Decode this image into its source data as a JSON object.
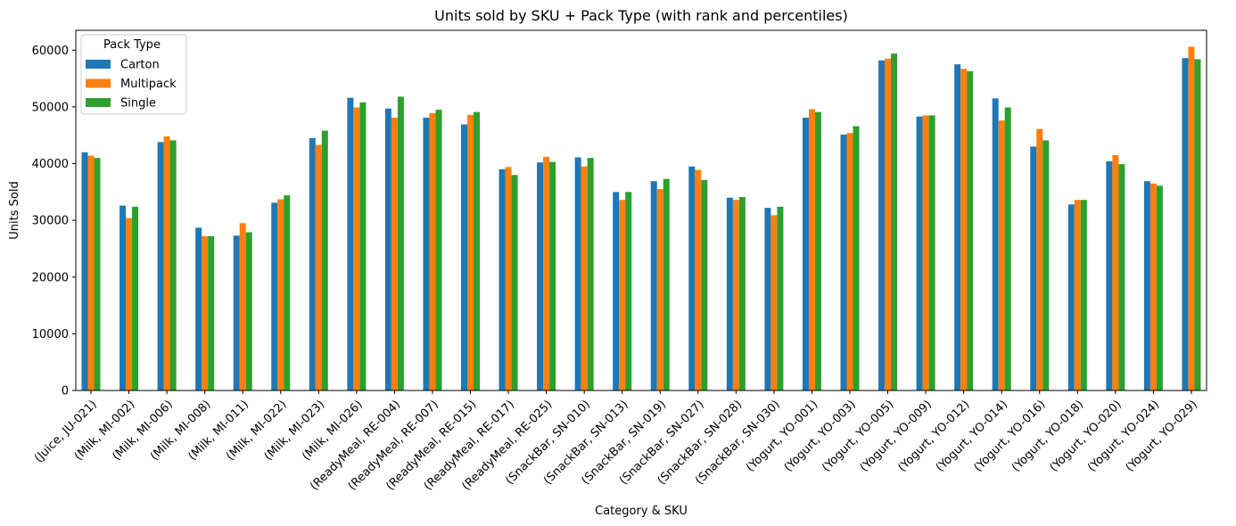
{
  "chart_data": {
    "type": "bar",
    "title": "Units sold by SKU + Pack Type (with rank and percentiles)",
    "xlabel": "Category & SKU",
    "ylabel": "Units Sold",
    "ylim": [
      0,
      63500
    ],
    "yticks": [
      0,
      10000,
      20000,
      30000,
      40000,
      50000,
      60000
    ],
    "grid": false,
    "legend_title": "Pack Type",
    "legend_placement": "top-left",
    "categories": [
      "(Juice, JU-021)",
      "(Milk, MI-002)",
      "(Milk, MI-006)",
      "(Milk, MI-008)",
      "(Milk, MI-011)",
      "(Milk, MI-022)",
      "(Milk, MI-023)",
      "(Milk, MI-026)",
      "(ReadyMeal, RE-004)",
      "(ReadyMeal, RE-007)",
      "(ReadyMeal, RE-015)",
      "(ReadyMeal, RE-017)",
      "(ReadyMeal, RE-025)",
      "(SnackBar, SN-010)",
      "(SnackBar, SN-013)",
      "(SnackBar, SN-019)",
      "(SnackBar, SN-027)",
      "(SnackBar, SN-028)",
      "(SnackBar, SN-030)",
      "(Yogurt, YO-001)",
      "(Yogurt, YO-003)",
      "(Yogurt, YO-005)",
      "(Yogurt, YO-009)",
      "(Yogurt, YO-012)",
      "(Yogurt, YO-014)",
      "(Yogurt, YO-016)",
      "(Yogurt, YO-018)",
      "(Yogurt, YO-020)",
      "(Yogurt, YO-024)",
      "(Yogurt, YO-029)"
    ],
    "series": [
      {
        "name": "Carton",
        "color": "#1f77b4",
        "values": [
          42000,
          32600,
          43800,
          28700,
          27300,
          33100,
          44500,
          51600,
          49700,
          48100,
          46900,
          39000,
          40200,
          41100,
          35000,
          36900,
          39500,
          34000,
          32200,
          48100,
          45100,
          58200,
          48300,
          57500,
          51500,
          43000,
          32800,
          40400,
          36900,
          58600
        ]
      },
      {
        "name": "Multipack",
        "color": "#ff7f0e",
        "values": [
          41400,
          30400,
          44800,
          27200,
          29500,
          33700,
          43300,
          49900,
          48100,
          48900,
          48600,
          39400,
          41200,
          39500,
          33600,
          35500,
          38900,
          33600,
          30900,
          49600,
          45400,
          58500,
          48500,
          56700,
          47600,
          46100,
          33600,
          41500,
          36500,
          60600
        ]
      },
      {
        "name": "Single",
        "color": "#2ca02c",
        "values": [
          41000,
          32400,
          44100,
          27200,
          27900,
          34400,
          45800,
          50800,
          51800,
          49500,
          49100,
          38000,
          40300,
          41000,
          35000,
          37300,
          37100,
          34100,
          32400,
          49100,
          46600,
          59400,
          48500,
          56300,
          49900,
          44100,
          33600,
          39900,
          36100,
          58400
        ]
      }
    ]
  }
}
